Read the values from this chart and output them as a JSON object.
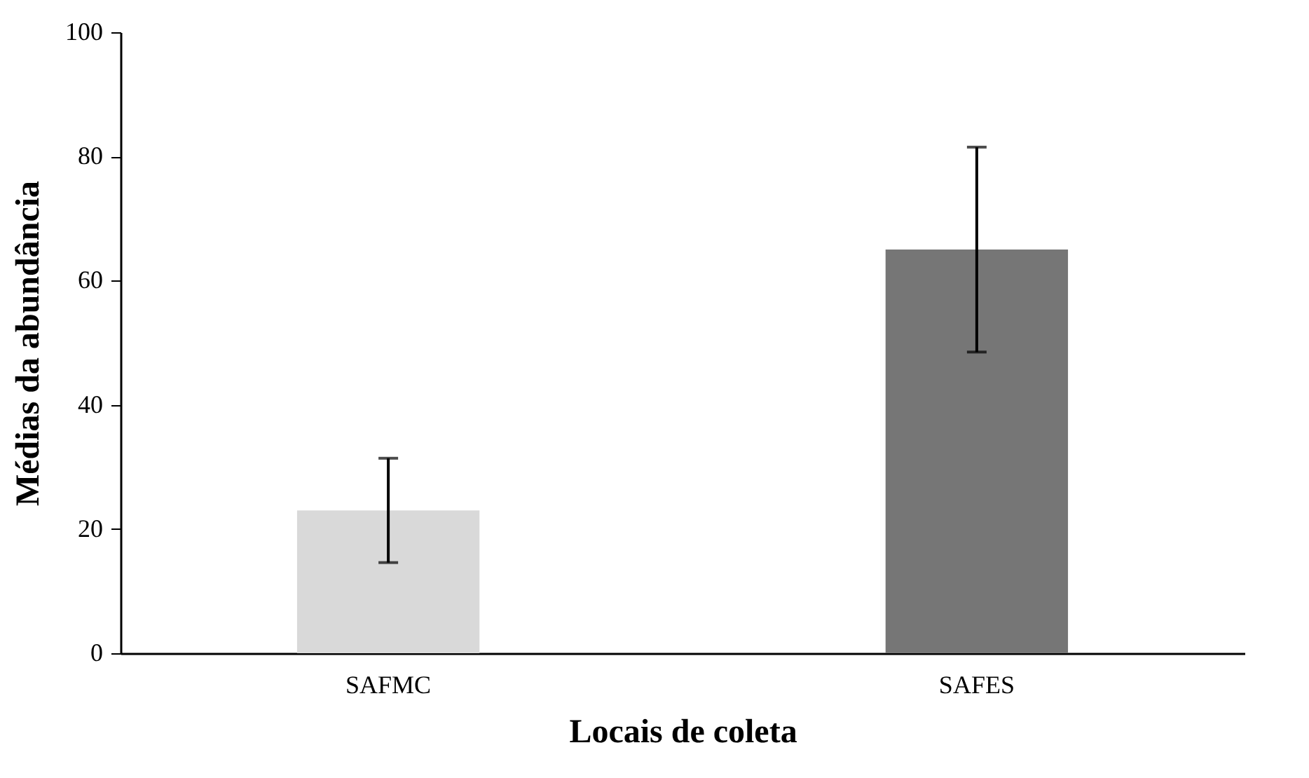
{
  "chart_data": {
    "type": "bar",
    "xlabel": "Locais de coleta",
    "ylabel": "Médias da abundância",
    "categories": [
      "SAFMC",
      "SAFES"
    ],
    "values": [
      23,
      65
    ],
    "colors": [
      "#d9d9d9",
      "#767676"
    ],
    "errors": [
      8.4,
      16.5
    ],
    "ylim": [
      0,
      100
    ],
    "yticks": [
      0,
      20,
      40,
      60,
      80,
      100
    ],
    "grid": false
  }
}
